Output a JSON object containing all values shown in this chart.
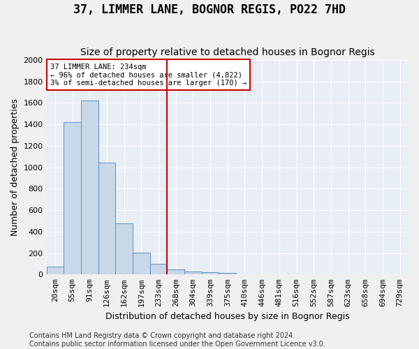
{
  "title": "37, LIMMER LANE, BOGNOR REGIS, PO22 7HD",
  "subtitle": "Size of property relative to detached houses in Bognor Regis",
  "xlabel": "Distribution of detached houses by size in Bognor Regis",
  "ylabel": "Number of detached properties",
  "bin_labels": [
    "20sqm",
    "55sqm",
    "91sqm",
    "126sqm",
    "162sqm",
    "197sqm",
    "233sqm",
    "268sqm",
    "304sqm",
    "339sqm",
    "375sqm",
    "410sqm",
    "446sqm",
    "481sqm",
    "516sqm",
    "552sqm",
    "587sqm",
    "623sqm",
    "658sqm",
    "694sqm",
    "729sqm"
  ],
  "bar_values": [
    75,
    1420,
    1625,
    1040,
    480,
    205,
    100,
    45,
    25,
    20,
    15,
    5,
    3,
    2,
    1,
    1,
    0,
    0,
    0,
    0,
    0
  ],
  "bar_color": "#c8d8e8",
  "bar_edge_color": "#5b8fc9",
  "property_line_color": "#cc0000",
  "ylim": [
    0,
    2000
  ],
  "yticks": [
    0,
    200,
    400,
    600,
    800,
    1000,
    1200,
    1400,
    1600,
    1800,
    2000
  ],
  "annotation_line1": "37 LIMMER LANE: 234sqm",
  "annotation_line2": "← 96% of detached houses are smaller (4,822)",
  "annotation_line3": "3% of semi-detached houses are larger (170) →",
  "annotation_box_color": "#ffffff",
  "annotation_box_edge": "#cc0000",
  "footer_line1": "Contains HM Land Registry data © Crown copyright and database right 2024.",
  "footer_line2": "Contains public sector information licensed under the Open Government Licence v3.0.",
  "background_color": "#e8eef5",
  "grid_color": "#ffffff",
  "title_fontsize": 12,
  "subtitle_fontsize": 10,
  "axis_label_fontsize": 9,
  "tick_fontsize": 8,
  "footer_fontsize": 7
}
